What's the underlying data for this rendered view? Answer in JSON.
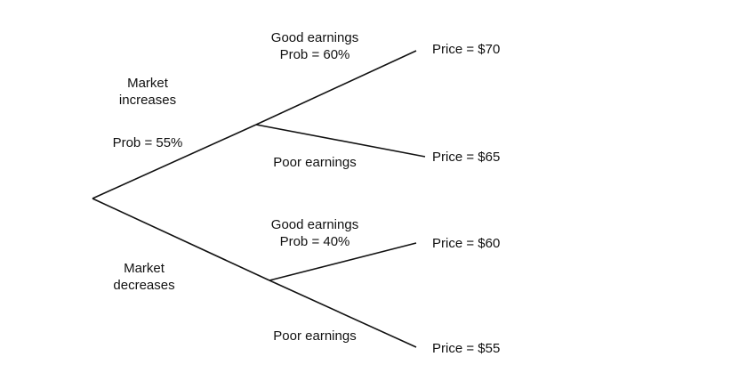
{
  "tree": {
    "root": {
      "up_branch": {
        "label_line1": "Market",
        "label_line2": "increases",
        "prob": "Prob = 55%",
        "good": {
          "label": "Good earnings",
          "prob": "Prob = 60%",
          "outcome": "Price = $70"
        },
        "poor": {
          "label": "Poor earnings",
          "outcome": "Price = $65"
        }
      },
      "down_branch": {
        "label_line1": "Market",
        "label_line2": "decreases",
        "good": {
          "label": "Good earnings",
          "prob": "Prob = 40%",
          "outcome": "Price = $60"
        },
        "poor": {
          "label": "Poor earnings",
          "outcome": "Price = $55"
        }
      }
    }
  },
  "colors": {
    "line": "#111111",
    "text": "#111111",
    "background": "#ffffff"
  }
}
